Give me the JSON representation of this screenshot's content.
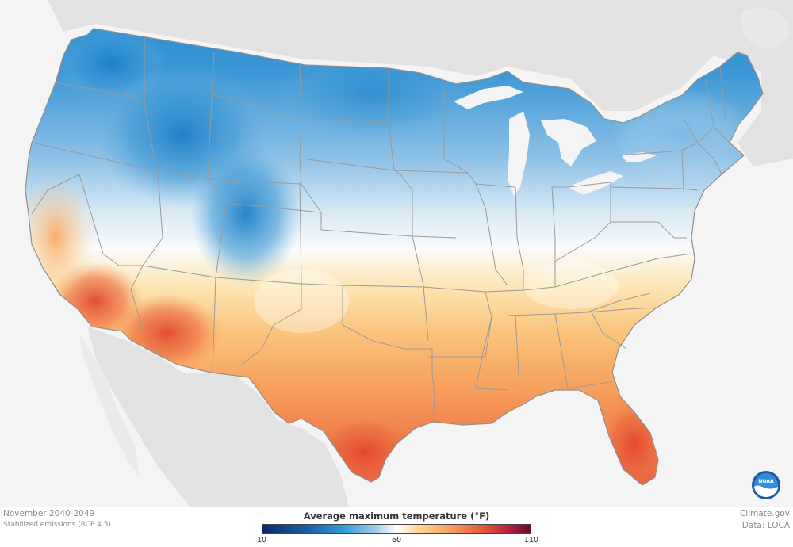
{
  "legend": {
    "title": "Average maximum temperature (°F)",
    "ticks": [
      "10",
      "60",
      "110"
    ]
  },
  "footer": {
    "period": "November 2040-2049",
    "scenario": "Stabilized emissions (RCP 4.5)",
    "credit": "Climate.gov",
    "source": "Data: LOCA"
  },
  "logo": {
    "text": "NOAA"
  },
  "colors": {
    "background": "#f4f4f4",
    "land_outside": "#e2e2e2",
    "cold": "#1a8ad0",
    "neutral": "#ffffff",
    "warm": "#f9b066",
    "hot": "#e5543a",
    "state_border": "#9a9a9a"
  }
}
